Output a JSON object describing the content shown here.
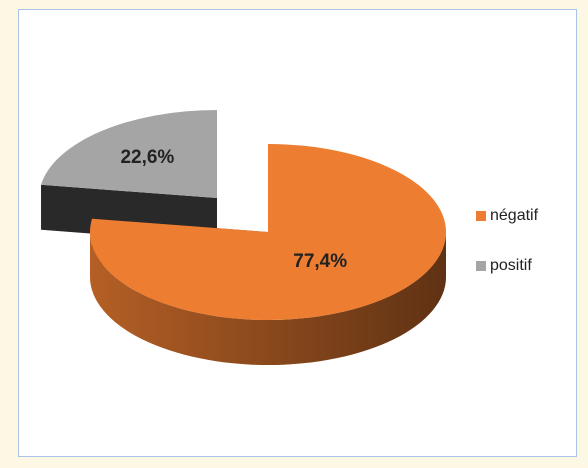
{
  "chart_data": {
    "type": "pie3d",
    "categories": [
      "négatif",
      "positif"
    ],
    "values": [
      77.4,
      22.6
    ],
    "value_labels": [
      "77,4%",
      "22,6%"
    ],
    "colors": [
      "#ed7d31",
      "#a5a5a5"
    ],
    "legend": "right"
  }
}
